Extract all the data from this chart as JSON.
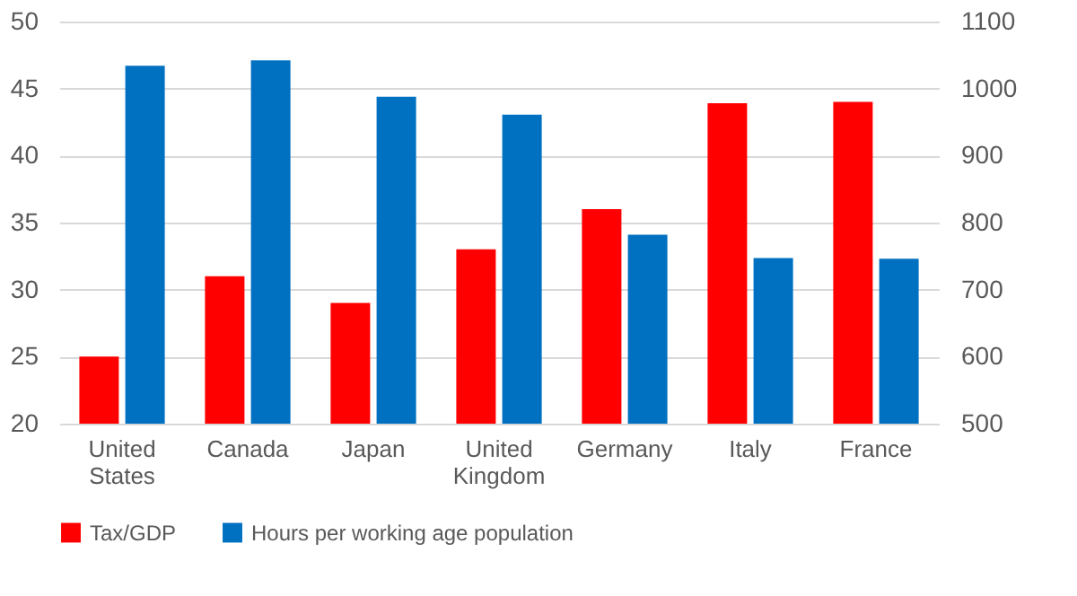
{
  "chart_data": {
    "type": "bar",
    "categories": [
      "United States",
      "Canada",
      "Japan",
      "United Kingdom",
      "Germany",
      "Italy",
      "France"
    ],
    "series": [
      {
        "name": "Tax/GDP",
        "color": "#ff0000",
        "values": [
          25,
          31,
          29,
          33,
          36,
          43.9,
          44
        ]
      },
      {
        "name": "Hours per working age population",
        "color": "#0070c0",
        "axis": "y2",
        "values": [
          1034,
          1042,
          988,
          961,
          782,
          747,
          746
        ]
      }
    ],
    "ylim": [
      20,
      50
    ],
    "yticks": [
      20,
      25,
      30,
      35,
      40,
      45,
      50
    ],
    "y2lim": [
      500,
      1100
    ],
    "y2ticks": [
      500,
      600,
      700,
      800,
      900,
      1000,
      1100
    ],
    "grid": "y",
    "legend": "bottom"
  }
}
